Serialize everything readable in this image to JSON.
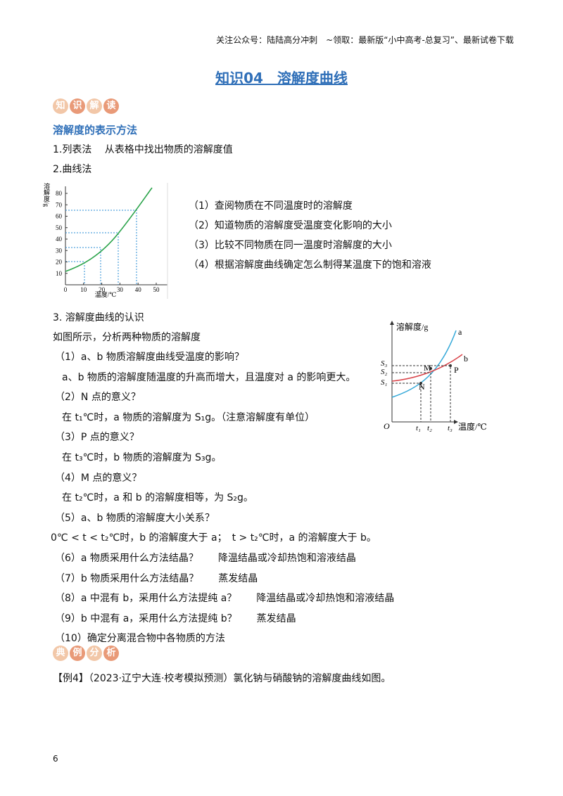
{
  "header": "关注公众号：陆陆高分冲刺　~领取：最新版“小中高考-总复习”、最新试卷下载",
  "title": "知识04　溶解度曲线",
  "badge1": [
    "知",
    "识",
    "解",
    "读"
  ],
  "heading": "溶解度的表示方法",
  "methods": [
    "1.列表法　 从表格中找出物质的溶解度值",
    "2.曲线法"
  ],
  "figure1": {
    "ylabel": "溶解度/g",
    "xlabel": "温度/℃",
    "yticks": [
      10,
      20,
      30,
      40,
      50,
      60,
      70,
      80
    ],
    "xticks": [
      0,
      10,
      20,
      30,
      40,
      50
    ]
  },
  "uses": [
    "（1）查阅物质在不同温度时的溶解度",
    "（2）知道物质的溶解度受温度变化影响的大小",
    "（3）比较不同物质在同一温度时溶解度的大小",
    "（4）根据溶解度曲线确定怎么制得某温度下的饱和溶液"
  ],
  "part3": {
    "title": "3. 溶解度曲线的认识",
    "intro": "如图所示，分析两种物质的溶解度",
    "lines": [
      "（1）a、b 物质溶解度曲线受温度的影响？",
      "a、b 物质的溶解度随温度的升高而增大，且温度对 a 的影响更大。",
      "（2）N 点的意义？",
      "在 t₁℃时，a 物质的溶解度为 S₁g。（注意溶解度有单位）",
      "（3）P 点的意义？",
      "在 t₃℃时，b 物质的溶解度为 S₃g。",
      "（4）M 点的意义？",
      "在 t₂℃时，a 和 b 的溶解度相等，为 S₂g。",
      "（5）a、b 物质的溶解度大小关系？",
      "0℃ < t < t₂℃时，b 的溶解度大于 a；　t > t₂℃时，a 的溶解度大于 b。",
      "（6）a 物质采用什么方法结晶？　　降温结晶或冷却热饱和溶液结晶",
      "（7）b 物质采用什么方法结晶？　　蒸发结晶",
      "（8）a 中混有 b，采用什么方法提纯 a？　　降温结晶或冷却热饱和溶液结晶",
      "（9）b 中混有 a，采用什么方法提纯 b？　　蒸发结晶",
      "（10）确定分离混合物中各物质的方法"
    ]
  },
  "figure2": {
    "ylabel": "溶解度/g",
    "xlabel": "温度/℃",
    "curves": [
      "a",
      "b"
    ],
    "ylevels": [
      "S₃",
      "S₂",
      "S₁"
    ],
    "points": [
      "M",
      "N",
      "P"
    ],
    "origin": "O",
    "xlevels": [
      "t₁",
      "t₂",
      "t₃"
    ]
  },
  "badge2": [
    "典",
    "例",
    "分",
    "析"
  ],
  "example": "【例4】（2023·辽宁大连·校考模拟预测）氯化钠与硝酸钠的溶解度曲线如图。",
  "page_number": "6"
}
